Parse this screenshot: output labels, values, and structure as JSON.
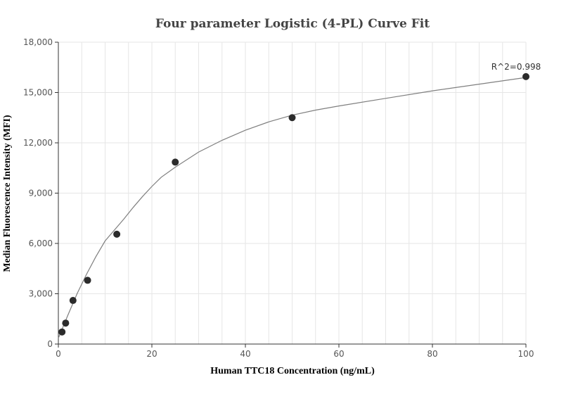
{
  "chart_data": {
    "type": "scatter",
    "title": "Four parameter Logistic (4-PL) Curve Fit",
    "xlabel": "Human TTC18 Concentration (ng/mL)",
    "ylabel": "Median Fluorescence Intensity (MFI)",
    "xlim": [
      0,
      100
    ],
    "ylim": [
      0,
      18000
    ],
    "x_ticks": [
      0,
      20,
      40,
      60,
      80,
      100
    ],
    "x_tick_labels": [
      "0",
      "20",
      "40",
      "60",
      "80",
      "100"
    ],
    "y_ticks": [
      0,
      3000,
      6000,
      9000,
      12000,
      15000,
      18000
    ],
    "y_tick_labels": [
      "0",
      "3,000",
      "6,000",
      "9,000",
      "12,000",
      "15,000",
      "18,000"
    ],
    "grid": true,
    "series": [
      {
        "type": "scatter",
        "x": [
          0.78,
          1.56,
          3.13,
          6.25,
          12.5,
          25,
          50,
          100
        ],
        "y": [
          720,
          1250,
          2600,
          3800,
          6550,
          10850,
          13500,
          15950
        ]
      },
      {
        "type": "line",
        "x": [
          0,
          2,
          4,
          6,
          8,
          10,
          12,
          14,
          16,
          18,
          20,
          22,
          25,
          30,
          35,
          40,
          45,
          50,
          55,
          60,
          70,
          80,
          90,
          100
        ],
        "y": [
          350,
          1700,
          3000,
          4150,
          5200,
          6150,
          6800,
          7450,
          8150,
          8800,
          9400,
          9950,
          10550,
          11450,
          12150,
          12750,
          13250,
          13650,
          13950,
          14200,
          14650,
          15100,
          15500,
          15900
        ]
      }
    ],
    "annotation": "R^2=0.998"
  },
  "colors": {
    "points": "#2b2b2b",
    "curve": "#7f7f7f",
    "grid": "#e6e6e6"
  }
}
